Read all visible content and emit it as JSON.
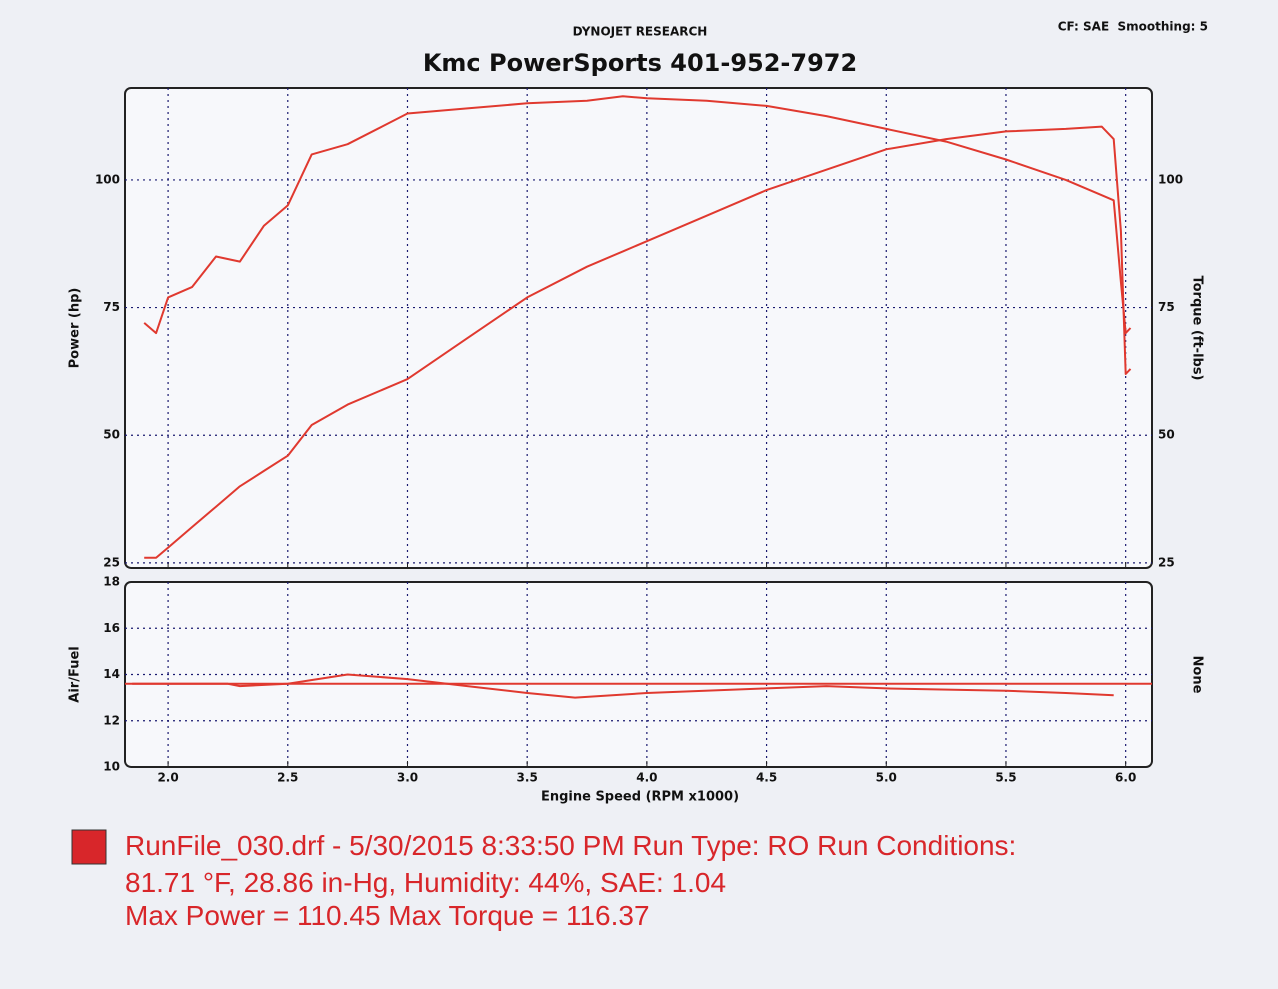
{
  "header": {
    "brand": "DYNOJET RESEARCH",
    "title": "Kmc PowerSports 401-952-7972",
    "settings": "CF: SAE  Smoothing: 5"
  },
  "chart_data": [
    {
      "type": "line",
      "ylabel": "Power (hp)",
      "y2label": "Torque (ft-lbs)",
      "x": [
        1.9,
        1.95,
        2.0,
        2.1,
        2.2,
        2.3,
        2.4,
        2.5,
        2.6,
        2.75,
        3.0,
        3.25,
        3.5,
        3.75,
        3.9,
        4.0,
        4.25,
        4.5,
        4.75,
        5.0,
        5.25,
        5.5,
        5.75,
        5.9,
        5.95,
        5.98,
        6.0,
        6.02
      ],
      "series": [
        {
          "name": "Power",
          "color": "#e0392f",
          "values": [
            26,
            26,
            28,
            32,
            36,
            40,
            43,
            46,
            52,
            56,
            61,
            69,
            77,
            83,
            86,
            88,
            93,
            98,
            102,
            106,
            108,
            109.5,
            110,
            110.45,
            108,
            90,
            62,
            63
          ]
        },
        {
          "name": "Torque",
          "color": "#e0392f",
          "axis": "y2",
          "values": [
            72,
            70,
            77,
            79,
            85,
            84,
            91,
            95,
            105,
            107,
            113,
            114,
            115,
            115.5,
            116.37,
            116,
            115.5,
            114.5,
            112.5,
            110,
            107.5,
            104,
            100,
            97,
            96,
            80,
            70,
            71
          ]
        }
      ],
      "xlim": [
        1.82,
        6.11
      ],
      "xticks": [
        2,
        2.5,
        3,
        3.5,
        4,
        4.5,
        5,
        5.5,
        6
      ],
      "ylim": [
        24,
        118
      ],
      "yticks": [
        25,
        50,
        75,
        100
      ],
      "y2lim": [
        24,
        118
      ],
      "y2ticks": [
        25,
        50,
        75,
        100
      ],
      "grid": true
    },
    {
      "type": "line",
      "ylabel": "Air/Fuel",
      "y2label": "None",
      "xlabel": "Engine Speed (RPM x1000)",
      "x": [
        1.85,
        2.0,
        2.25,
        2.3,
        2.5,
        2.75,
        3.0,
        3.25,
        3.5,
        3.7,
        4.0,
        4.5,
        4.75,
        5.0,
        5.5,
        5.75,
        5.95
      ],
      "series": [
        {
          "name": "Air/Fuel",
          "color": "#e0392f",
          "values": [
            13.6,
            13.6,
            13.6,
            13.5,
            13.6,
            14.0,
            13.8,
            13.5,
            13.2,
            13.0,
            13.2,
            13.4,
            13.5,
            13.4,
            13.3,
            13.2,
            13.1
          ]
        }
      ],
      "hline": 13.6,
      "hline_color": "#e0392f",
      "xlim": [
        1.82,
        6.11
      ],
      "xticks": [
        {
          "value": 2,
          "label": "2.0"
        },
        2.5,
        {
          "value": 3,
          "label": "3.0"
        },
        3.5,
        {
          "value": 4,
          "label": "4.0"
        },
        4.5,
        {
          "value": 5,
          "label": "5.0"
        },
        5.5,
        {
          "value": 6,
          "label": "6.0"
        }
      ],
      "ylim": [
        10,
        18
      ],
      "yticks": [
        10,
        12,
        14,
        16,
        18
      ],
      "grid": true
    }
  ],
  "footer": {
    "legend_color": "#d8262a",
    "lines": [
      "RunFile_030.drf - 5/30/2015 8:33:50 PM  Run Type: RO  Run Conditions:",
      "81.71 °F, 28.86 in-Hg,  Humidity:  44%, SAE: 1.04",
      "Max Power = 110.45  Max Torque = 116.37"
    ]
  }
}
